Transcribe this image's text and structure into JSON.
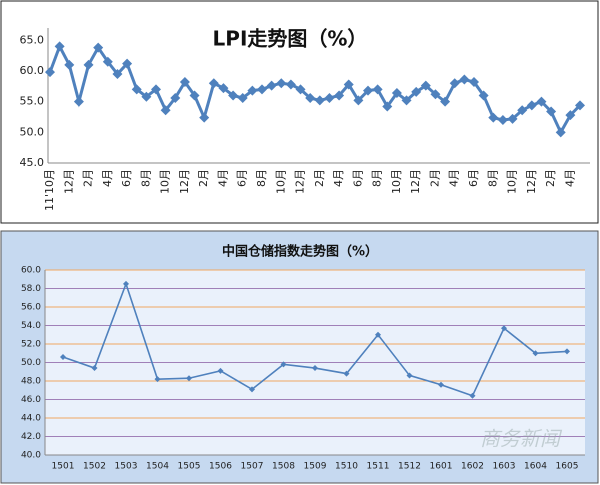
{
  "chart_data": [
    {
      "type": "line",
      "title": "LPI走势图（%）",
      "categories": [
        "11'10月",
        null,
        "12月",
        null,
        "2月",
        null,
        "4月",
        null,
        "6月",
        null,
        "8月",
        null,
        "10月",
        null,
        "12月",
        null,
        "2月",
        null,
        "4月",
        null,
        "6月",
        null,
        "8月",
        null,
        "10月",
        null,
        "12月",
        null,
        "2月",
        null,
        "4月",
        null,
        "6月",
        null,
        "8月",
        null,
        "10月",
        null,
        "12月",
        null,
        "2月",
        null,
        "4月",
        null,
        "6月",
        null,
        "8月",
        null,
        "10月",
        null,
        "12月",
        null,
        "2月",
        null,
        "4月",
        null
      ],
      "series": [
        {
          "color": "#4f81bd",
          "values": [
            59.8,
            64.0,
            61.0,
            55.0,
            61.0,
            63.8,
            61.5,
            59.5,
            61.2,
            57.0,
            55.8,
            57.0,
            53.6,
            55.6,
            58.2,
            56.0,
            52.4,
            58.0,
            57.2,
            56.0,
            55.6,
            56.8,
            57.0,
            57.6,
            58.0,
            57.8,
            57.0,
            55.6,
            55.2,
            55.6,
            56.0,
            57.8,
            55.2,
            56.8,
            57.0,
            54.2,
            56.4,
            55.2,
            56.6,
            57.6,
            56.2,
            55.0,
            58.0,
            58.6,
            58.2,
            56.0,
            52.4,
            52.0,
            52.2,
            53.6,
            54.4,
            55.0,
            53.4,
            50.0,
            52.8,
            54.4
          ]
        }
      ],
      "ylim": [
        45,
        67
      ],
      "yticks": [
        {
          "value": 45,
          "label": "45.0"
        },
        {
          "value": 50,
          "label": "50.0"
        },
        {
          "value": 55,
          "label": "55.0"
        },
        {
          "value": 60,
          "label": "60.0"
        },
        {
          "value": 65,
          "label": "65.0"
        }
      ],
      "grid": false
    },
    {
      "type": "line",
      "title": "中国仓储指数走势图（%）",
      "categories": [
        "1501",
        "1502",
        "1503",
        "1504",
        "1505",
        "1506",
        "1507",
        "1508",
        "1509",
        "1510",
        "1511",
        "1512",
        "1601",
        "1602",
        "1603",
        "1604",
        "1605"
      ],
      "series": [
        {
          "color": "#4f81bd",
          "values": [
            50.6,
            49.4,
            58.5,
            48.2,
            48.3,
            49.1,
            47.1,
            49.8,
            49.4,
            48.8,
            53.0,
            48.6,
            47.6,
            46.4,
            53.7,
            51.0,
            51.2
          ]
        }
      ],
      "ylim": [
        40,
        60
      ],
      "yticks": [
        {
          "value": 40,
          "label": "40.0"
        },
        {
          "value": 42,
          "label": "42.0"
        },
        {
          "value": 44,
          "label": "44.0"
        },
        {
          "value": 46,
          "label": "46.0"
        },
        {
          "value": 48,
          "label": "48.0"
        },
        {
          "value": 50,
          "label": "50.0"
        },
        {
          "value": 52,
          "label": "52.0"
        },
        {
          "value": 54,
          "label": "54.0"
        },
        {
          "value": 56,
          "label": "56.0"
        },
        {
          "value": 58,
          "label": "58.0"
        },
        {
          "value": 60,
          "label": "60.0"
        }
      ],
      "grid": true,
      "grid_colors": [
        "#f0a860",
        "#a080b8"
      ],
      "watermark": "商务新闻"
    }
  ]
}
